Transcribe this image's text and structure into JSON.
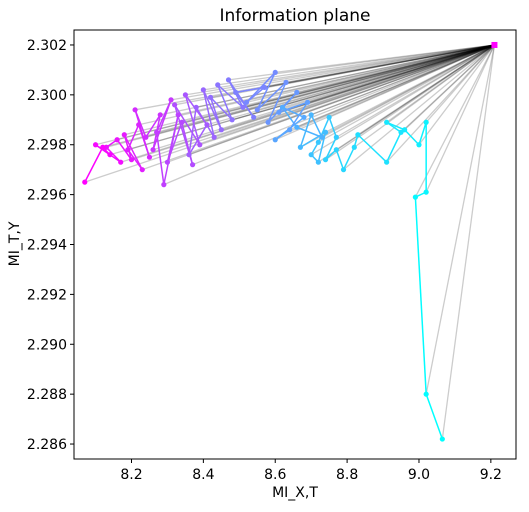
{
  "chart_data": {
    "type": "line",
    "title": "Information plane",
    "xlabel": "MI_X,T",
    "ylabel": "MI_T,Y",
    "xlim": [
      8.04,
      9.27
    ],
    "ylim": [
      2.2854,
      2.3026
    ],
    "xticks": [
      "8.2",
      "8.4",
      "8.6",
      "8.8",
      "9.0",
      "9.2"
    ],
    "yticks": [
      "2.286",
      "2.288",
      "2.290",
      "2.292",
      "2.294",
      "2.296",
      "2.298",
      "2.300",
      "2.302"
    ],
    "grid": false,
    "legend": "none",
    "colormap": "cool",
    "anchor_point": {
      "x": 9.21,
      "y": 2.302
    },
    "connector_color": "#000000",
    "series": [
      {
        "points": [
          {
            "x": 9.065,
            "y": 2.2862
          },
          {
            "x": 9.02,
            "y": 2.288
          },
          {
            "x": 8.99,
            "y": 2.2959
          },
          {
            "x": 9.02,
            "y": 2.2961
          },
          {
            "x": 9.02,
            "y": 2.2989
          },
          {
            "x": 9.0,
            "y": 2.298
          },
          {
            "x": 8.96,
            "y": 2.2986
          },
          {
            "x": 8.91,
            "y": 2.2989
          },
          {
            "x": 8.95,
            "y": 2.2985
          },
          {
            "x": 8.91,
            "y": 2.2973
          },
          {
            "x": 8.83,
            "y": 2.2984
          },
          {
            "x": 8.82,
            "y": 2.2979
          },
          {
            "x": 8.79,
            "y": 2.297
          },
          {
            "x": 8.77,
            "y": 2.2978
          },
          {
            "x": 8.74,
            "y": 2.2974
          },
          {
            "x": 8.77,
            "y": 2.2983
          },
          {
            "x": 8.75,
            "y": 2.2991
          },
          {
            "x": 8.72,
            "y": 2.2981
          },
          {
            "x": 8.7,
            "y": 2.2976
          },
          {
            "x": 8.72,
            "y": 2.2973
          },
          {
            "x": 8.74,
            "y": 2.2985
          },
          {
            "x": 8.67,
            "y": 2.2979
          },
          {
            "x": 8.7,
            "y": 2.2992
          },
          {
            "x": 8.73,
            "y": 2.2983
          },
          {
            "x": 8.66,
            "y": 2.2987
          },
          {
            "x": 8.62,
            "y": 2.2995
          },
          {
            "x": 8.68,
            "y": 2.2991
          },
          {
            "x": 8.6,
            "y": 2.2982
          },
          {
            "x": 8.64,
            "y": 2.2986
          },
          {
            "x": 8.69,
            "y": 2.2997
          },
          {
            "x": 8.61,
            "y": 2.2993
          },
          {
            "x": 8.66,
            "y": 2.3001
          },
          {
            "x": 8.58,
            "y": 2.2989
          },
          {
            "x": 8.63,
            "y": 2.3005
          },
          {
            "x": 8.55,
            "y": 2.2994
          },
          {
            "x": 8.6,
            "y": 2.3009
          },
          {
            "x": 8.52,
            "y": 2.2997
          },
          {
            "x": 8.57,
            "y": 2.3003
          },
          {
            "x": 8.49,
            "y": 2.3001
          },
          {
            "x": 8.54,
            "y": 2.2991
          },
          {
            "x": 8.47,
            "y": 2.3006
          },
          {
            "x": 8.51,
            "y": 2.2995
          },
          {
            "x": 8.44,
            "y": 2.3004
          },
          {
            "x": 8.48,
            "y": 2.299
          },
          {
            "x": 8.42,
            "y": 2.2999
          },
          {
            "x": 8.45,
            "y": 2.2986
          },
          {
            "x": 8.4,
            "y": 2.3002
          },
          {
            "x": 8.43,
            "y": 2.2983
          },
          {
            "x": 8.38,
            "y": 2.2995
          },
          {
            "x": 8.36,
            "y": 2.2976
          },
          {
            "x": 8.41,
            "y": 2.2988
          },
          {
            "x": 8.35,
            "y": 2.3
          },
          {
            "x": 8.39,
            "y": 2.298
          },
          {
            "x": 8.32,
            "y": 2.2996
          },
          {
            "x": 8.37,
            "y": 2.2972
          },
          {
            "x": 8.34,
            "y": 2.2989
          },
          {
            "x": 8.3,
            "y": 2.2973
          },
          {
            "x": 8.33,
            "y": 2.2992
          },
          {
            "x": 8.29,
            "y": 2.2964
          },
          {
            "x": 8.27,
            "y": 2.2985
          },
          {
            "x": 8.31,
            "y": 2.2998
          },
          {
            "x": 8.26,
            "y": 2.2978
          },
          {
            "x": 8.28,
            "y": 2.2992
          },
          {
            "x": 8.24,
            "y": 2.2983
          },
          {
            "x": 8.21,
            "y": 2.2994
          },
          {
            "x": 8.25,
            "y": 2.2975
          },
          {
            "x": 8.22,
            "y": 2.2988
          },
          {
            "x": 8.19,
            "y": 2.2978
          },
          {
            "x": 8.23,
            "y": 2.297
          },
          {
            "x": 8.18,
            "y": 2.2984
          },
          {
            "x": 8.2,
            "y": 2.2974
          },
          {
            "x": 8.16,
            "y": 2.2982
          },
          {
            "x": 8.13,
            "y": 2.2979
          },
          {
            "x": 8.17,
            "y": 2.2973
          },
          {
            "x": 8.1,
            "y": 2.298
          },
          {
            "x": 8.14,
            "y": 2.2976
          },
          {
            "x": 8.12,
            "y": 2.2979
          },
          {
            "x": 8.07,
            "y": 2.2965
          }
        ]
      }
    ]
  }
}
